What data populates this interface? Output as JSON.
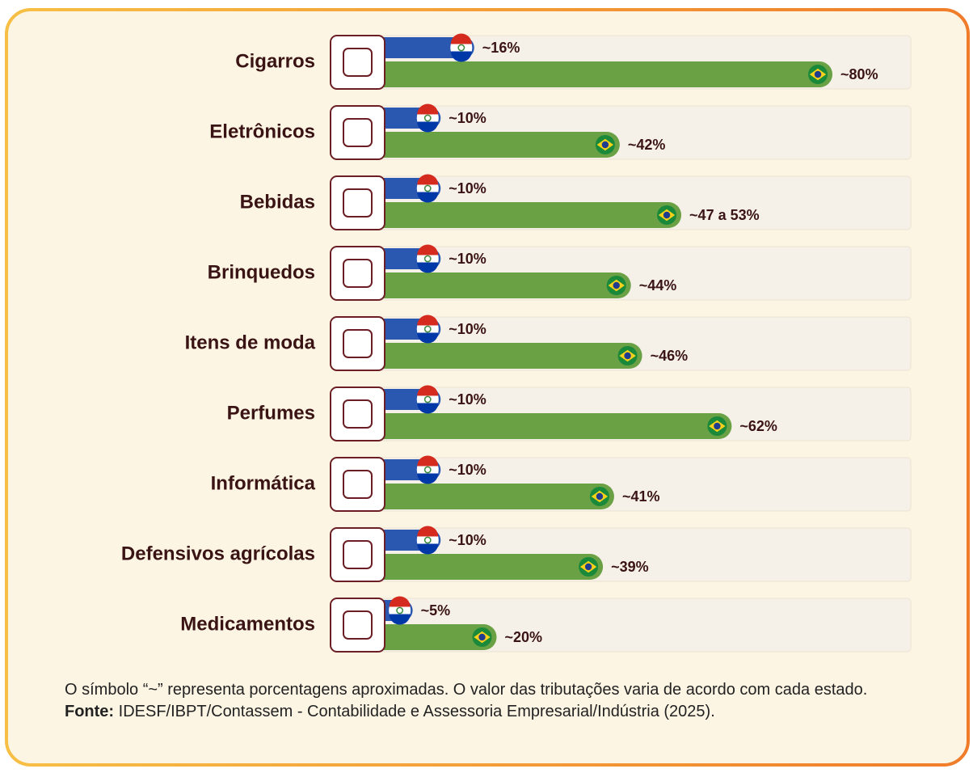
{
  "chart_data": {
    "type": "bar",
    "categories": [
      "Cigarros",
      "Eletrônicos",
      "Bebidas",
      "Brinquedos",
      "Itens de moda",
      "Perfumes",
      "Informática",
      "Defensivos agrícolas",
      "Medicamentos"
    ],
    "series": [
      {
        "color": "#2a57b0",
        "values": [
          16,
          10,
          10,
          10,
          10,
          10,
          10,
          10,
          5
        ],
        "value_labels": [
          "~16%",
          "~10%",
          "~10%",
          "~10%",
          "~10%",
          "~10%",
          "~10%",
          "~10%",
          "~5%"
        ]
      },
      {
        "color": "#6aa145",
        "values": [
          80,
          42,
          53,
          44,
          46,
          62,
          41,
          39,
          20
        ],
        "value_labels": [
          "~80%",
          "~42%",
          "~47 a 53%",
          "~44%",
          "~46%",
          "~62%",
          "~41%",
          "~39%",
          "~20%"
        ]
      }
    ],
    "xlim": [
      0,
      94
    ],
    "note": "O símbolo “~” representa porcentagens aproximadas. O valor das tributações varia de acordo com cada estado.",
    "source_label": "Fonte:",
    "source": "IDESF/IBPT/Contassem - Contabilidade e Assessoria Empresarial/Indústria (2025)."
  }
}
